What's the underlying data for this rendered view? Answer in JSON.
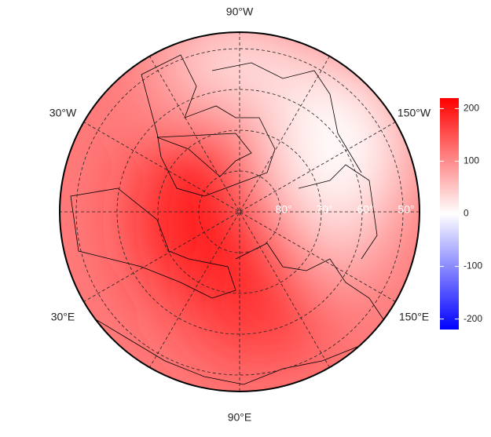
{
  "map": {
    "lon_labels": [
      "90°W",
      "30°W",
      "150°W",
      "30°E",
      "150°E",
      "90°E"
    ],
    "lat_labels": [
      "80°",
      "70°",
      "60°",
      "50°"
    ],
    "colorbar": {
      "colors": [
        "#0000ff",
        "#ffffff",
        "#ff0000"
      ],
      "lim": [
        -220,
        220
      ],
      "ticks": [
        200,
        100,
        0,
        -100,
        -200
      ]
    }
  }
}
